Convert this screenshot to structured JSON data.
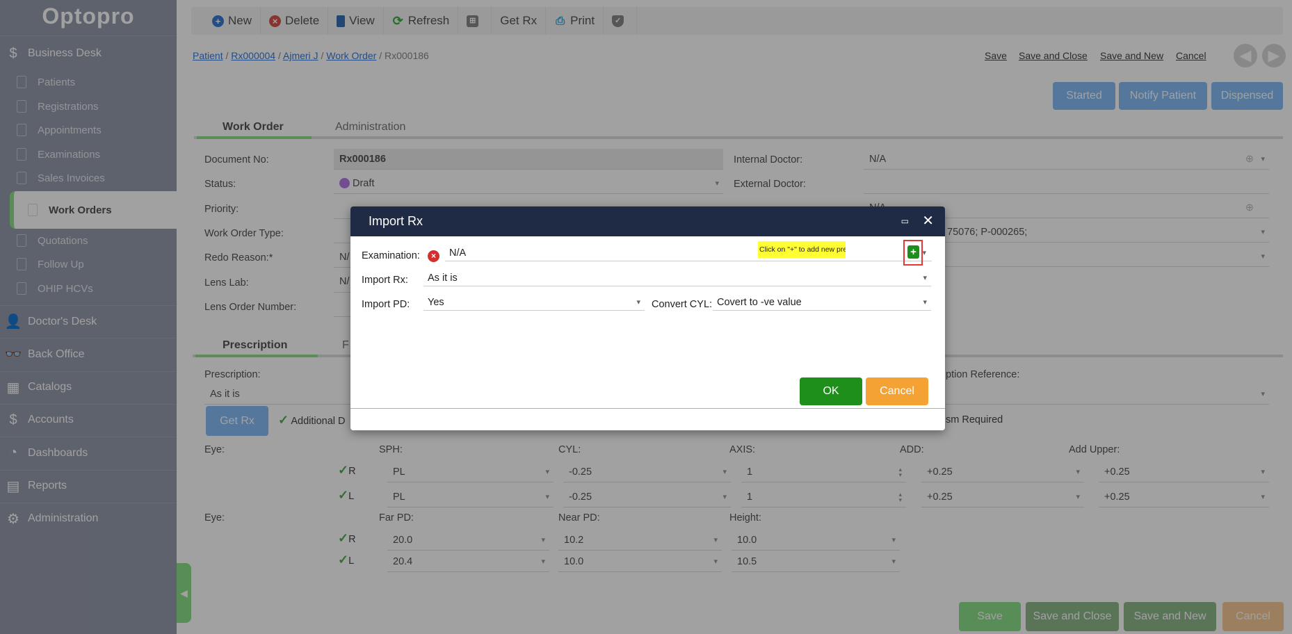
{
  "app": {
    "logo": "Optopro"
  },
  "sidebar": {
    "business_desk": "Business Desk",
    "items": [
      "Patients",
      "Registrations",
      "Appointments",
      "Examinations",
      "Sales Invoices",
      "Work Orders",
      "Quotations",
      "Follow Up",
      "OHIP HCVs"
    ],
    "active": "Work Orders",
    "sections": [
      "Doctor's Desk",
      "Back Office",
      "Catalogs",
      "Accounts",
      "Dashboards",
      "Reports",
      "Administration"
    ]
  },
  "toolbar": {
    "new": "New",
    "delete": "Delete",
    "view": "View",
    "refresh": "Refresh",
    "get_rx": "Get Rx",
    "print": "Print"
  },
  "breadcrumb": {
    "patient": "Patient",
    "rx": "Rx000004",
    "name": "Ajmeri J",
    "work_order": "Work Order",
    "current": "Rx000186",
    "sep": "/"
  },
  "top_links": {
    "save": "Save",
    "save_close": "Save and Close",
    "save_new": "Save and New",
    "cancel": "Cancel"
  },
  "status_buttons": {
    "started": "Started",
    "notify": "Notify Patient",
    "dispensed": "Dispensed"
  },
  "tabs": {
    "work_order": "Work Order",
    "administration": "Administration"
  },
  "form": {
    "document_no_label": "Document No:",
    "document_no": "Rx000186",
    "status_label": "Status:",
    "status": "Draft",
    "priority_label": "Priority:",
    "type_label": "Work Order Type:",
    "redo_label": "Redo Reason:*",
    "redo": "N/",
    "lens_lab_label": "Lens Lab:",
    "lens_lab": "N/",
    "lens_order_label": "Lens Order Number:",
    "internal_doctor_label": "Internal Doctor:",
    "internal_doctor": "N/A",
    "external_doctor_label": "External Doctor:",
    "row3_value": "N/A",
    "row4_value": "75076; P-000265;"
  },
  "rx_tabs": {
    "prescription": "Prescription",
    "second": "F"
  },
  "rx": {
    "prescription_label": "Prescription:",
    "prescription": "As it is",
    "reference_label": "ption Reference:",
    "get_rx": "Get Rx",
    "additional": "Additional D",
    "prism": "sm Required",
    "eye_label": "Eye:",
    "columns": [
      "SPH:",
      "CYL:",
      "AXIS:",
      "ADD:",
      "Add Upper:"
    ],
    "rows": [
      {
        "eye": "R",
        "values": [
          "PL",
          "-0.25",
          "1",
          "+0.25",
          "+0.25"
        ]
      },
      {
        "eye": "L",
        "values": [
          "PL",
          "-0.25",
          "1",
          "+0.25",
          "+0.25"
        ]
      }
    ],
    "pd_columns": [
      "Far PD:",
      "Near PD:",
      "Height:"
    ],
    "pd_rows": [
      {
        "eye": "R",
        "values": [
          "20.0",
          "10.2",
          "10.0"
        ]
      },
      {
        "eye": "L",
        "values": [
          "20.4",
          "10.0",
          "10.5"
        ]
      }
    ]
  },
  "footer": {
    "save": "Save",
    "save_close": "Save and Close",
    "save_new": "Save and New",
    "cancel": "Cancel"
  },
  "modal": {
    "title": "Import Rx",
    "examination_label": "Examination:",
    "examination": "N/A",
    "hint": "Click on \"+\" to add new prescription",
    "import_rx_label": "Import Rx:",
    "import_rx": "As it is",
    "import_pd_label": "Import PD:",
    "import_pd": "Yes",
    "convert_cyl_label": "Convert CYL:",
    "convert_cyl": "Covert to -ve value",
    "ok": "OK",
    "cancel": "Cancel"
  },
  "colors": {
    "modal_header": "#1f2a44",
    "ok": "#1e8f1a",
    "cancel": "#f4a233",
    "hint": "#ffff33",
    "highlight": "#e53935",
    "primary": "#87bdf5"
  }
}
